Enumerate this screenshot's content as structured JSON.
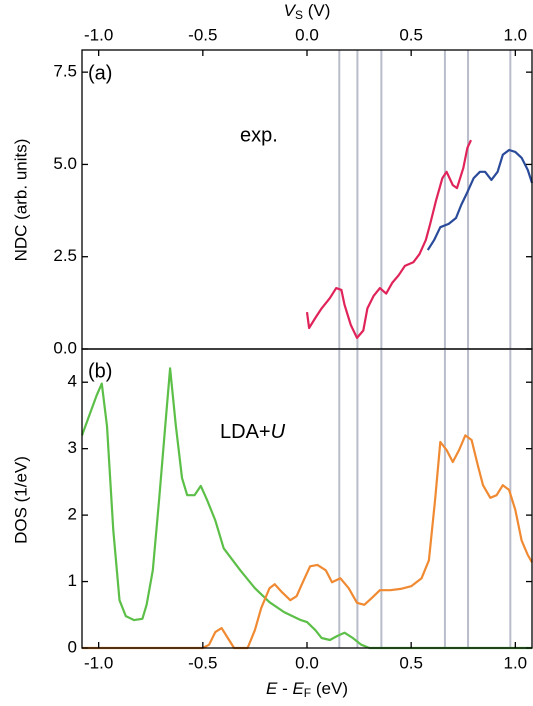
{
  "chart_data": [
    {
      "type": "line",
      "x_label_parts": [
        "V",
        "S",
        " (V)"
      ],
      "y_label": "NDC (arb. units)",
      "panel_label": "(a)",
      "annotation": "exp.",
      "xlim": [
        -1.08,
        1.08
      ],
      "xticks": [
        {
          "value": -1,
          "label": "-1.0"
        },
        {
          "value": -0.5,
          "label": "-0.5"
        },
        {
          "value": 0,
          "label": "0.0"
        },
        {
          "value": 0.5,
          "label": "0.5"
        },
        {
          "value": 1,
          "label": "1.0"
        }
      ],
      "ylim": [
        0,
        8.1
      ],
      "yticks": [
        {
          "value": 0,
          "label": "0.0"
        },
        2.5,
        {
          "value": 5,
          "label": "5.0"
        },
        7.5
      ],
      "vlines": [
        0.155,
        0.242,
        0.357,
        0.662,
        0.773,
        0.976
      ],
      "vline_color": "#b9bccb",
      "series": [
        {
          "color": "#e0245a",
          "x": [
            0.0,
            0.01,
            0.04,
            0.07,
            0.11,
            0.14,
            0.165,
            0.18,
            0.21,
            0.24,
            0.27,
            0.29,
            0.32,
            0.35,
            0.38,
            0.41,
            0.44,
            0.47,
            0.51,
            0.54,
            0.57,
            0.59,
            0.62,
            0.65,
            0.67,
            0.7,
            0.72,
            0.75,
            0.77,
            0.787
          ],
          "values": [
            1.0,
            0.57,
            0.84,
            1.1,
            1.38,
            1.65,
            1.6,
            1.2,
            0.65,
            0.3,
            0.5,
            1.1,
            1.44,
            1.65,
            1.5,
            1.8,
            2.0,
            2.25,
            2.35,
            2.57,
            2.95,
            3.36,
            4.04,
            4.63,
            4.8,
            4.44,
            4.36,
            4.9,
            5.45,
            5.66
          ]
        },
        {
          "color": "#2a4a9a",
          "x": [
            0.58,
            0.61,
            0.64,
            0.68,
            0.715,
            0.74,
            0.77,
            0.8,
            0.83,
            0.855,
            0.885,
            0.915,
            0.94,
            0.97,
            1.0,
            1.03,
            1.06,
            1.08
          ],
          "values": [
            2.68,
            2.95,
            3.3,
            3.39,
            3.55,
            3.9,
            4.25,
            4.63,
            4.8,
            4.8,
            4.58,
            4.8,
            5.26,
            5.39,
            5.34,
            5.18,
            4.85,
            4.5
          ]
        }
      ]
    },
    {
      "type": "line",
      "x_label_parts": [
        "E",
        " - ",
        "E",
        "F",
        " (eV)"
      ],
      "y_label": "DOS (1/eV)",
      "panel_label": "(b)",
      "annotation_parts": [
        "LDA+",
        "U"
      ],
      "xlim": [
        -1.08,
        1.08
      ],
      "xticks": [
        {
          "value": -1,
          "label": "-1.0"
        },
        {
          "value": -0.5,
          "label": "-0.5"
        },
        {
          "value": 0,
          "label": "0.0"
        },
        {
          "value": 0.5,
          "label": "0.5"
        },
        {
          "value": 1,
          "label": "1.0"
        }
      ],
      "ylim": [
        0,
        4.5
      ],
      "yticks": [
        0,
        1,
        2,
        3,
        4
      ],
      "vlines": [
        0.155,
        0.242,
        0.357,
        0.662,
        0.773,
        0.976
      ],
      "vline_color": "#b9bccb",
      "series": [
        {
          "color": "#5cbf48",
          "x": [
            -1.08,
            -1.05,
            -1.01,
            -0.985,
            -0.96,
            -0.93,
            -0.9,
            -0.87,
            -0.83,
            -0.79,
            -0.77,
            -0.74,
            -0.71,
            -0.68,
            -0.657,
            -0.63,
            -0.6,
            -0.575,
            -0.54,
            -0.51,
            -0.48,
            -0.44,
            -0.4,
            -0.32,
            -0.25,
            -0.18,
            -0.11,
            -0.03,
            0.0,
            0.04,
            0.07,
            0.11,
            0.145,
            0.18,
            0.22,
            0.26,
            0.3,
            0.6,
            1.08
          ],
          "values": [
            3.2,
            3.46,
            3.8,
            3.98,
            3.34,
            1.77,
            0.72,
            0.48,
            0.42,
            0.44,
            0.65,
            1.17,
            2.23,
            3.35,
            4.21,
            3.35,
            2.56,
            2.3,
            2.3,
            2.44,
            2.23,
            1.92,
            1.5,
            1.17,
            0.9,
            0.69,
            0.54,
            0.42,
            0.39,
            0.27,
            0.15,
            0.12,
            0.18,
            0.23,
            0.15,
            0.05,
            0.0,
            0.0,
            0.0
          ]
        },
        {
          "color": "#f08a32",
          "x": [
            -1.08,
            -0.5,
            -0.47,
            -0.44,
            -0.41,
            -0.38,
            -0.35,
            -0.285,
            -0.25,
            -0.22,
            -0.18,
            -0.155,
            -0.12,
            -0.08,
            -0.05,
            -0.02,
            0.015,
            0.05,
            0.09,
            0.12,
            0.16,
            0.2,
            0.24,
            0.275,
            0.31,
            0.35,
            0.4,
            0.45,
            0.5,
            0.55,
            0.585,
            0.615,
            0.64,
            0.67,
            0.7,
            0.73,
            0.76,
            0.79,
            0.82,
            0.845,
            0.88,
            0.91,
            0.94,
            0.97,
            1.0,
            1.03,
            1.06,
            1.08
          ],
          "values": [
            0.0,
            0.0,
            0.05,
            0.24,
            0.3,
            0.15,
            0.0,
            0.0,
            0.27,
            0.6,
            0.9,
            0.96,
            0.84,
            0.72,
            0.78,
            0.99,
            1.23,
            1.25,
            1.17,
            0.99,
            1.05,
            0.9,
            0.68,
            0.65,
            0.75,
            0.87,
            0.87,
            0.89,
            0.93,
            1.05,
            1.32,
            2.23,
            3.1,
            2.98,
            2.8,
            2.98,
            3.2,
            3.13,
            2.75,
            2.45,
            2.26,
            2.3,
            2.45,
            2.38,
            2.08,
            1.62,
            1.4,
            1.29
          ]
        }
      ]
    }
  ]
}
